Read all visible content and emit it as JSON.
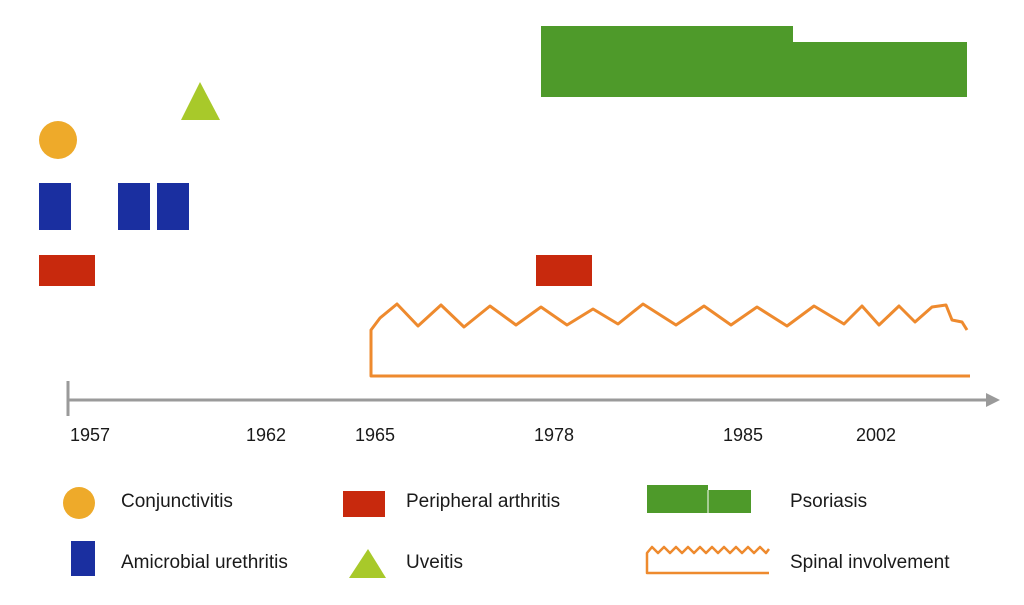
{
  "colors": {
    "conjunctivitis": "#eeaa2a",
    "amicrobial_urethritis": "#1a2fa0",
    "peripheral_arthritis": "#c8290d",
    "uveitis": "#a8c92a",
    "psoriasis": "#4e9a2a",
    "spinal_involvement": "#ee8a2e",
    "axis": "#9a9a9a"
  },
  "timeline": {
    "years": [
      "1957",
      "1962",
      "1965",
      "1978",
      "1985",
      "2002"
    ]
  },
  "legend": {
    "conjunctivitis": {
      "label": "Conjunctivitis",
      "icon": "circle-icon"
    },
    "amicrobial_urethritis": {
      "label": "Amicrobial urethritis",
      "icon": "rectangle-icon"
    },
    "peripheral_arthritis": {
      "label": "Peripheral arthritis",
      "icon": "rectangle-icon"
    },
    "uveitis": {
      "label": "Uveitis",
      "icon": "triangle-icon"
    },
    "psoriasis": {
      "label": "Psoriasis",
      "icon": "stepped-bar-icon"
    },
    "spinal_involvement": {
      "label": "Spinal involvement",
      "icon": "zigzag-line-icon"
    }
  }
}
